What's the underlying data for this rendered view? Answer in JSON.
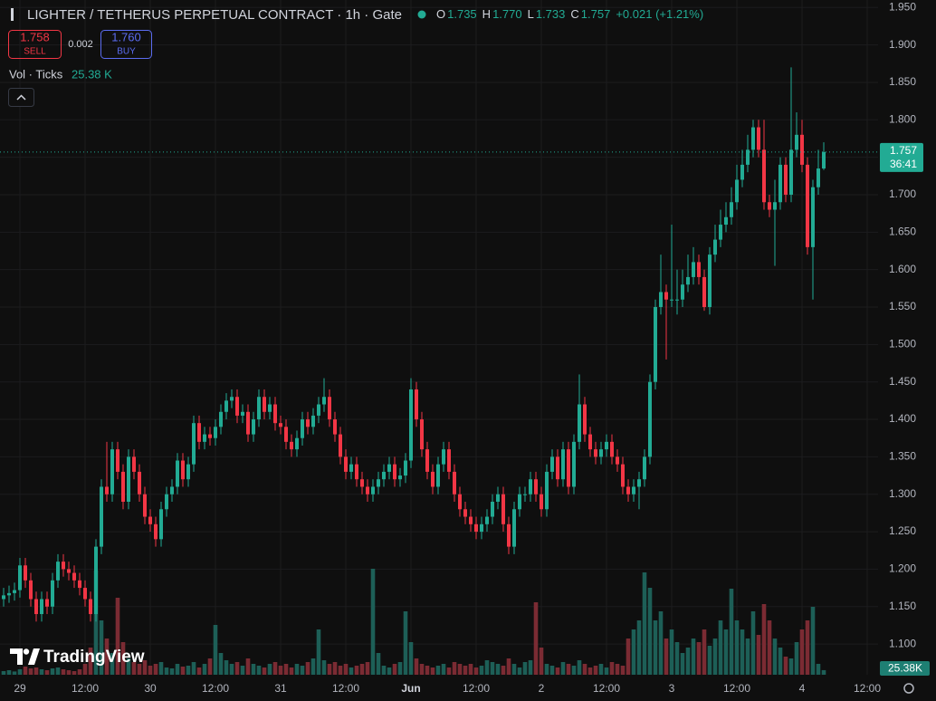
{
  "header": {
    "title": "LIGHTER / TETHERUS PERPETUAL CONTRACT · 1h · Gate",
    "ohlc": [
      {
        "key": "O",
        "value": "1.735"
      },
      {
        "key": "H",
        "value": "1.770"
      },
      {
        "key": "L",
        "value": "1.733"
      },
      {
        "key": "C",
        "value": "1.757"
      }
    ],
    "change": "+0.021 (+1.21%)"
  },
  "trade": {
    "sell_price": "1.758",
    "sell_label": "SELL",
    "spread": "0.002",
    "buy_price": "1.760",
    "buy_label": "BUY"
  },
  "volume_legend": {
    "label": "Vol · Ticks",
    "value": "25.38 K"
  },
  "branding": "TradingView",
  "chart_data": {
    "type": "candlestick",
    "x": [
      -3,
      -2,
      -1,
      0,
      1,
      2,
      3,
      4,
      5,
      6,
      7,
      8,
      9,
      10,
      11,
      12,
      13,
      14,
      15,
      16,
      17,
      18,
      19,
      20,
      21,
      22,
      23,
      24,
      25,
      26,
      27,
      28,
      29,
      30,
      31,
      32,
      33,
      34,
      35,
      36,
      37,
      38,
      39,
      40,
      41,
      42,
      43,
      44,
      45,
      46,
      47,
      48,
      49,
      50,
      51,
      52,
      53,
      54,
      55,
      56,
      57,
      58,
      59,
      60,
      61,
      62,
      63,
      64,
      65,
      66,
      67,
      68,
      69,
      70,
      71,
      72,
      73,
      74,
      75,
      76,
      77,
      78,
      79,
      80,
      81,
      82,
      83,
      84,
      85,
      86,
      87,
      88,
      89,
      90,
      91,
      92,
      93,
      94,
      95,
      96,
      97,
      98,
      99,
      100,
      101,
      102,
      103,
      104,
      105,
      106,
      107,
      108,
      109,
      110,
      111,
      112,
      113,
      114,
      115,
      116,
      117,
      118,
      119,
      120,
      121,
      122,
      123,
      124,
      125,
      126,
      127,
      128,
      129,
      130,
      131,
      132,
      133,
      134,
      135,
      136,
      137,
      138,
      139,
      140,
      141,
      142,
      143,
      144,
      145,
      146,
      147,
      148
    ],
    "open": [
      1.16,
      1.165,
      1.168,
      1.172,
      1.205,
      1.185,
      1.16,
      1.14,
      1.16,
      1.15,
      1.185,
      1.21,
      1.2,
      1.195,
      1.185,
      1.175,
      1.16,
      1.14,
      1.23,
      1.31,
      1.3,
      1.36,
      1.33,
      1.29,
      1.35,
      1.33,
      1.3,
      1.27,
      1.26,
      1.24,
      1.28,
      1.3,
      1.31,
      1.345,
      1.32,
      1.34,
      1.395,
      1.37,
      1.38,
      1.375,
      1.39,
      1.41,
      1.425,
      1.43,
      1.405,
      1.41,
      1.38,
      1.4,
      1.43,
      1.41,
      1.42,
      1.395,
      1.39,
      1.37,
      1.36,
      1.375,
      1.4,
      1.39,
      1.405,
      1.42,
      1.43,
      1.4,
      1.38,
      1.35,
      1.33,
      1.34,
      1.32,
      1.31,
      1.3,
      1.31,
      1.32,
      1.33,
      1.34,
      1.32,
      1.325,
      1.345,
      1.44,
      1.4,
      1.36,
      1.33,
      1.31,
      1.34,
      1.36,
      1.33,
      1.3,
      1.28,
      1.27,
      1.26,
      1.25,
      1.26,
      1.27,
      1.29,
      1.3,
      1.26,
      1.23,
      1.28,
      1.3,
      1.3,
      1.32,
      1.3,
      1.28,
      1.33,
      1.35,
      1.32,
      1.36,
      1.31,
      1.37,
      1.42,
      1.38,
      1.36,
      1.35,
      1.36,
      1.37,
      1.35,
      1.34,
      1.31,
      1.3,
      1.31,
      1.32,
      1.35,
      1.45,
      1.55,
      1.57,
      1.56,
      1.56,
      1.56,
      1.58,
      1.59,
      1.61,
      1.59,
      1.55,
      1.62,
      1.64,
      1.66,
      1.67,
      1.69,
      1.72,
      1.74,
      1.76,
      1.79,
      1.76,
      1.69,
      1.68,
      1.69,
      1.74,
      1.7,
      1.76,
      1.78,
      1.74,
      1.63,
      1.71,
      1.735
    ],
    "high": [
      1.175,
      1.178,
      1.182,
      1.215,
      1.215,
      1.195,
      1.17,
      1.17,
      1.17,
      1.195,
      1.22,
      1.22,
      1.21,
      1.205,
      1.195,
      1.185,
      1.17,
      1.24,
      1.32,
      1.37,
      1.37,
      1.37,
      1.34,
      1.36,
      1.36,
      1.34,
      1.31,
      1.28,
      1.27,
      1.29,
      1.31,
      1.32,
      1.355,
      1.355,
      1.35,
      1.405,
      1.405,
      1.39,
      1.39,
      1.4,
      1.42,
      1.435,
      1.44,
      1.44,
      1.42,
      1.42,
      1.41,
      1.44,
      1.44,
      1.43,
      1.43,
      1.405,
      1.4,
      1.38,
      1.385,
      1.41,
      1.41,
      1.415,
      1.43,
      1.455,
      1.44,
      1.41,
      1.39,
      1.36,
      1.35,
      1.35,
      1.33,
      1.32,
      1.32,
      1.33,
      1.34,
      1.35,
      1.35,
      1.335,
      1.355,
      1.455,
      1.45,
      1.41,
      1.37,
      1.34,
      1.35,
      1.37,
      1.37,
      1.34,
      1.31,
      1.29,
      1.28,
      1.27,
      1.27,
      1.28,
      1.3,
      1.31,
      1.31,
      1.27,
      1.29,
      1.31,
      1.31,
      1.33,
      1.33,
      1.31,
      1.34,
      1.36,
      1.36,
      1.37,
      1.37,
      1.38,
      1.46,
      1.43,
      1.39,
      1.37,
      1.37,
      1.38,
      1.38,
      1.36,
      1.35,
      1.32,
      1.32,
      1.33,
      1.36,
      1.46,
      1.56,
      1.62,
      1.58,
      1.66,
      1.6,
      1.6,
      1.62,
      1.63,
      1.62,
      1.6,
      1.63,
      1.66,
      1.68,
      1.69,
      1.71,
      1.74,
      1.76,
      1.78,
      1.8,
      1.8,
      1.8,
      1.7,
      1.72,
      1.75,
      1.75,
      1.87,
      1.81,
      1.8,
      1.75,
      1.72,
      1.76,
      1.77
    ],
    "low": [
      1.15,
      1.155,
      1.158,
      1.162,
      1.175,
      1.15,
      1.13,
      1.13,
      1.14,
      1.14,
      1.175,
      1.19,
      1.185,
      1.175,
      1.165,
      1.15,
      1.13,
      1.13,
      1.22,
      1.29,
      1.29,
      1.32,
      1.28,
      1.28,
      1.32,
      1.29,
      1.26,
      1.25,
      1.23,
      1.23,
      1.27,
      1.29,
      1.3,
      1.31,
      1.31,
      1.33,
      1.36,
      1.36,
      1.365,
      1.365,
      1.38,
      1.4,
      1.415,
      1.395,
      1.395,
      1.37,
      1.37,
      1.39,
      1.4,
      1.4,
      1.385,
      1.38,
      1.36,
      1.35,
      1.35,
      1.365,
      1.38,
      1.38,
      1.395,
      1.41,
      1.39,
      1.37,
      1.34,
      1.32,
      1.32,
      1.31,
      1.3,
      1.29,
      1.29,
      1.3,
      1.31,
      1.32,
      1.31,
      1.31,
      1.315,
      1.335,
      1.39,
      1.35,
      1.32,
      1.3,
      1.3,
      1.33,
      1.32,
      1.29,
      1.27,
      1.26,
      1.25,
      1.24,
      1.24,
      1.25,
      1.26,
      1.28,
      1.25,
      1.22,
      1.22,
      1.27,
      1.29,
      1.29,
      1.29,
      1.27,
      1.27,
      1.32,
      1.31,
      1.31,
      1.3,
      1.3,
      1.36,
      1.37,
      1.35,
      1.34,
      1.34,
      1.35,
      1.34,
      1.33,
      1.3,
      1.29,
      1.29,
      1.28,
      1.31,
      1.34,
      1.44,
      1.54,
      1.48,
      1.55,
      1.54,
      1.55,
      1.57,
      1.58,
      1.58,
      1.545,
      1.54,
      1.61,
      1.63,
      1.65,
      1.66,
      1.68,
      1.71,
      1.73,
      1.75,
      1.75,
      1.68,
      1.67,
      1.605,
      1.68,
      1.69,
      1.69,
      1.75,
      1.73,
      1.62,
      1.56,
      1.7,
      1.733
    ],
    "close": [
      1.165,
      1.168,
      1.172,
      1.205,
      1.185,
      1.16,
      1.14,
      1.16,
      1.15,
      1.185,
      1.21,
      1.2,
      1.195,
      1.185,
      1.175,
      1.16,
      1.14,
      1.23,
      1.31,
      1.3,
      1.36,
      1.33,
      1.29,
      1.35,
      1.33,
      1.3,
      1.27,
      1.26,
      1.24,
      1.28,
      1.3,
      1.31,
      1.345,
      1.32,
      1.34,
      1.395,
      1.37,
      1.38,
      1.375,
      1.39,
      1.41,
      1.425,
      1.43,
      1.405,
      1.41,
      1.38,
      1.4,
      1.43,
      1.41,
      1.42,
      1.395,
      1.39,
      1.37,
      1.36,
      1.375,
      1.4,
      1.39,
      1.405,
      1.42,
      1.43,
      1.4,
      1.38,
      1.35,
      1.33,
      1.34,
      1.32,
      1.31,
      1.3,
      1.31,
      1.32,
      1.33,
      1.34,
      1.32,
      1.325,
      1.345,
      1.44,
      1.4,
      1.36,
      1.33,
      1.31,
      1.34,
      1.36,
      1.33,
      1.3,
      1.28,
      1.27,
      1.26,
      1.25,
      1.26,
      1.27,
      1.29,
      1.3,
      1.26,
      1.23,
      1.28,
      1.3,
      1.3,
      1.32,
      1.3,
      1.28,
      1.33,
      1.35,
      1.32,
      1.36,
      1.31,
      1.37,
      1.42,
      1.38,
      1.36,
      1.35,
      1.36,
      1.37,
      1.35,
      1.34,
      1.31,
      1.3,
      1.31,
      1.32,
      1.35,
      1.45,
      1.55,
      1.57,
      1.56,
      1.56,
      1.56,
      1.58,
      1.59,
      1.61,
      1.59,
      1.55,
      1.62,
      1.64,
      1.66,
      1.67,
      1.69,
      1.72,
      1.74,
      1.76,
      1.79,
      1.76,
      1.69,
      1.68,
      1.69,
      1.74,
      1.7,
      1.76,
      1.78,
      1.74,
      1.63,
      1.71,
      1.735,
      1.757
    ],
    "volume": [
      20,
      25,
      18,
      30,
      45,
      35,
      40,
      30,
      25,
      35,
      40,
      30,
      25,
      20,
      30,
      60,
      150,
      575,
      300,
      200,
      120,
      425,
      180,
      90,
      70,
      60,
      80,
      50,
      60,
      70,
      40,
      35,
      60,
      45,
      50,
      70,
      40,
      60,
      90,
      275,
      120,
      80,
      60,
      70,
      50,
      90,
      60,
      50,
      40,
      60,
      70,
      50,
      60,
      40,
      60,
      50,
      70,
      90,
      250,
      80,
      60,
      70,
      50,
      60,
      40,
      50,
      60,
      70,
      585,
      120,
      50,
      40,
      60,
      70,
      350,
      180,
      90,
      60,
      50,
      40,
      50,
      60,
      40,
      70,
      60,
      50,
      60,
      40,
      50,
      80,
      70,
      60,
      50,
      90,
      60,
      40,
      70,
      80,
      400,
      150,
      60,
      50,
      40,
      70,
      60,
      50,
      80,
      60,
      40,
      50,
      60,
      40,
      70,
      60,
      50,
      200,
      250,
      300,
      565,
      480,
      300,
      350,
      200,
      250,
      180,
      120,
      150,
      200,
      180,
      250,
      160,
      200,
      300,
      250,
      475,
      300,
      250,
      200,
      350,
      220,
      390,
      300,
      200,
      150,
      100,
      90,
      180,
      250,
      300,
      375,
      60,
      25.38
    ],
    "last_volume_label": "25.38K",
    "countdown": "36:41",
    "xlim": [
      -3.667,
      158
    ],
    "xticks": [
      {
        "value": 0,
        "label": "29"
      },
      {
        "value": 12,
        "label": "12:00"
      },
      {
        "value": 24,
        "label": "30"
      },
      {
        "value": 36,
        "label": "12:00"
      },
      {
        "value": 48,
        "label": "31"
      },
      {
        "value": 60,
        "label": "12:00"
      },
      {
        "value": 72,
        "label": "Jun"
      },
      {
        "value": 84,
        "label": "12:00"
      },
      {
        "value": 96,
        "label": "2"
      },
      {
        "value": 108,
        "label": "12:00"
      },
      {
        "value": 120,
        "label": "3"
      },
      {
        "value": 132,
        "label": "12:00"
      },
      {
        "value": 144,
        "label": "4"
      },
      {
        "value": 156,
        "label": "12:00"
      }
    ],
    "ylim": [
      1.059,
      1.96
    ],
    "yticks": [
      {
        "value": 1.1,
        "label": "1.100"
      },
      {
        "value": 1.15,
        "label": "1.150"
      },
      {
        "value": 1.2,
        "label": "1.200"
      },
      {
        "value": 1.25,
        "label": "1.250"
      },
      {
        "value": 1.3,
        "label": "1.300"
      },
      {
        "value": 1.35,
        "label": "1.350"
      },
      {
        "value": 1.4,
        "label": "1.400"
      },
      {
        "value": 1.45,
        "label": "1.450"
      },
      {
        "value": 1.5,
        "label": "1.500"
      },
      {
        "value": 1.55,
        "label": "1.550"
      },
      {
        "value": 1.6,
        "label": "1.600"
      },
      {
        "value": 1.65,
        "label": "1.650"
      },
      {
        "value": 1.7,
        "label": "1.700"
      },
      {
        "value": 1.75,
        "label": "1.750"
      },
      {
        "value": 1.8,
        "label": "1.800"
      },
      {
        "value": 1.85,
        "label": "1.850"
      },
      {
        "value": 1.9,
        "label": "1.900"
      },
      {
        "value": 1.95,
        "label": "1.950"
      }
    ],
    "up_color": "#22ab94",
    "down_color": "#f23645",
    "volume_up_color": "#1d5f57",
    "volume_down_color": "#7b2b33",
    "grid": true
  }
}
